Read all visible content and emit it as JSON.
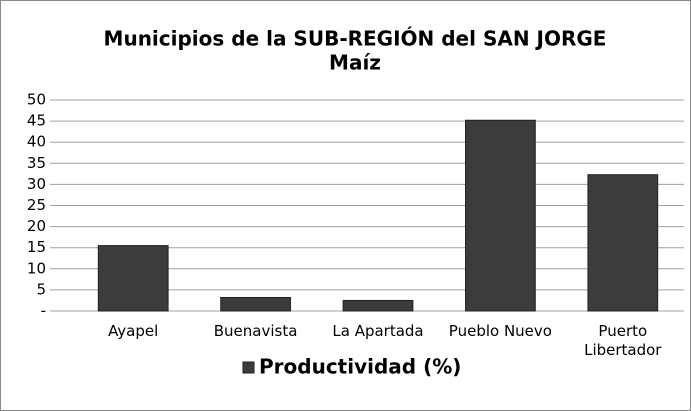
{
  "chart_data": {
    "type": "bar",
    "title": "Municipios de la SUB-REGIÓN del SAN JORGE",
    "subtitle": "Maíz",
    "categories": [
      "Ayapel",
      "Buenavista",
      "La Apartada",
      "Pueblo Nuevo",
      "Puerto Libertador"
    ],
    "series": [
      {
        "name": "Productividad (%)",
        "color": "#3c3c3c",
        "values": [
          15.5,
          3.2,
          2.5,
          45.2,
          32.3
        ]
      }
    ],
    "ylim": [
      0,
      50
    ],
    "yticks": [
      {
        "value": 0,
        "label": "-"
      },
      5,
      10,
      15,
      20,
      25,
      30,
      35,
      40,
      45,
      50
    ],
    "grid": true,
    "legend": "bottom"
  }
}
